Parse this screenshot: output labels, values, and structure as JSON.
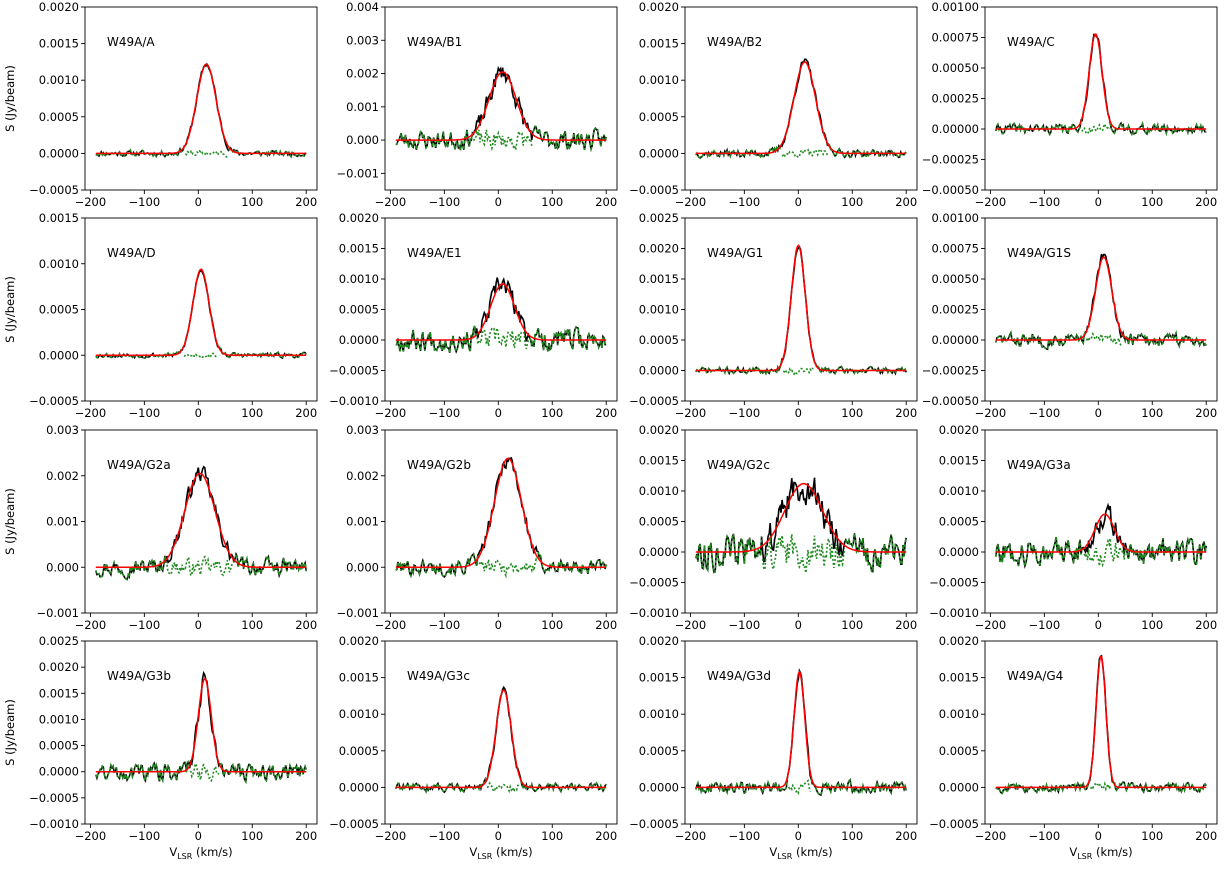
{
  "figure": {
    "ylabel": "S (Jy/beam)",
    "xlabel_main": "V",
    "xlabel_sub": "LSR",
    "xlabel_unit": " (km/s)"
  },
  "colors": {
    "observed": "#000000",
    "fit": "#ff0000",
    "residual": "#228B22"
  },
  "chart_data": [
    {
      "type": "line",
      "title": "W49A/A",
      "xlim": [
        -210,
        220
      ],
      "ylim": [
        -0.0005,
        0.002
      ],
      "xticks": [
        -200,
        -100,
        0,
        100,
        200
      ],
      "xtick_labels": [
        "−200",
        "−100",
        "0",
        "100",
        "200"
      ],
      "yticks": [
        -0.0005,
        0,
        0.0005,
        0.001,
        0.0015,
        0.002
      ],
      "ytick_labels": [
        "−0.0005",
        "0.0000",
        "0.0005",
        "0.0010",
        "0.0015",
        "0.0020"
      ],
      "fit": {
        "center": 15,
        "width": 18,
        "amplitude": 0.00122
      },
      "noise": 6e-05,
      "seed": 11
    },
    {
      "type": "line",
      "title": "W49A/B1",
      "xlim": [
        -210,
        220
      ],
      "ylim": [
        -0.0015,
        0.004
      ],
      "xticks": [
        -200,
        -100,
        0,
        100,
        200
      ],
      "xtick_labels": [
        "−200",
        "−100",
        "0",
        "100",
        "200"
      ],
      "yticks": [
        -0.001,
        0,
        0.001,
        0.002,
        0.003,
        0.004
      ],
      "ytick_labels": [
        "−0.001",
        "0.000",
        "0.001",
        "0.002",
        "0.003",
        "0.004"
      ],
      "fit": {
        "center": 8,
        "width": 25,
        "amplitude": 0.00205
      },
      "noise": 0.00045,
      "seed": 23
    },
    {
      "type": "line",
      "title": "W49A/B2",
      "xlim": [
        -210,
        220
      ],
      "ylim": [
        -0.0005,
        0.002
      ],
      "xticks": [
        -200,
        -100,
        0,
        100,
        200
      ],
      "xtick_labels": [
        "−200",
        "−100",
        "0",
        "100",
        "200"
      ],
      "yticks": [
        -0.0005,
        0,
        0.0005,
        0.001,
        0.0015,
        0.002
      ],
      "ytick_labels": [
        "−0.0005",
        "0.0000",
        "0.0005",
        "0.0010",
        "0.0015",
        "0.0020"
      ],
      "fit": {
        "center": 12,
        "width": 20,
        "amplitude": 0.00125
      },
      "noise": 8e-05,
      "seed": 37
    },
    {
      "type": "line",
      "title": "W49A/C",
      "xlim": [
        -210,
        220
      ],
      "ylim": [
        -0.0005,
        0.001
      ],
      "xticks": [
        -200,
        -100,
        0,
        100,
        200
      ],
      "xtick_labels": [
        "−200",
        "−100",
        "0",
        "100",
        "200"
      ],
      "yticks": [
        -0.0005,
        -0.00025,
        0,
        0.00025,
        0.0005,
        0.00075,
        0.001
      ],
      "ytick_labels": [
        "−0.00050",
        "−0.00025",
        "0.00000",
        "0.00025",
        "0.00050",
        "0.00075",
        "0.00100"
      ],
      "fit": {
        "center": -5,
        "width": 12,
        "amplitude": 0.00078
      },
      "noise": 6e-05,
      "seed": 41
    },
    {
      "type": "line",
      "title": "W49A/D",
      "xlim": [
        -210,
        220
      ],
      "ylim": [
        -0.0005,
        0.0015
      ],
      "xticks": [
        -200,
        -100,
        0,
        100,
        200
      ],
      "xtick_labels": [
        "−200",
        "−100",
        "0",
        "100",
        "200"
      ],
      "yticks": [
        -0.0005,
        0,
        0.0005,
        0.001,
        0.0015
      ],
      "ytick_labels": [
        "−0.0005",
        "0.0000",
        "0.0005",
        "0.0010",
        "0.0015"
      ],
      "fit": {
        "center": 5,
        "width": 15,
        "amplitude": 0.00094
      },
      "noise": 4e-05,
      "seed": 53
    },
    {
      "type": "line",
      "title": "W49A/E1",
      "xlim": [
        -210,
        220
      ],
      "ylim": [
        -0.001,
        0.002
      ],
      "xticks": [
        -200,
        -100,
        0,
        100,
        200
      ],
      "xtick_labels": [
        "−200",
        "−100",
        "0",
        "100",
        "200"
      ],
      "yticks": [
        -0.001,
        -0.0005,
        0,
        0.0005,
        0.001,
        0.0015,
        0.002
      ],
      "ytick_labels": [
        "−0.0010",
        "−0.0005",
        "0.0000",
        "0.0005",
        "0.0010",
        "0.0015",
        "0.0020"
      ],
      "fit": {
        "center": 8,
        "width": 22,
        "amplitude": 0.00092
      },
      "noise": 0.00028,
      "seed": 67
    },
    {
      "type": "line",
      "title": "W49A/G1",
      "xlim": [
        -210,
        220
      ],
      "ylim": [
        -0.0005,
        0.0025
      ],
      "xticks": [
        -200,
        -100,
        0,
        100,
        200
      ],
      "xtick_labels": [
        "−200",
        "−100",
        "0",
        "100",
        "200"
      ],
      "yticks": [
        -0.0005,
        0,
        0.0005,
        0.001,
        0.0015,
        0.002,
        0.0025
      ],
      "ytick_labels": [
        "−0.0005",
        "0.0000",
        "0.0005",
        "0.0010",
        "0.0015",
        "0.0020",
        "0.0025"
      ],
      "fit": {
        "center": 0,
        "width": 13,
        "amplitude": 0.00205
      },
      "noise": 8e-05,
      "seed": 71
    },
    {
      "type": "line",
      "title": "W49A/G1S",
      "xlim": [
        -210,
        220
      ],
      "ylim": [
        -0.0005,
        0.001
      ],
      "xticks": [
        -200,
        -100,
        0,
        100,
        200
      ],
      "xtick_labels": [
        "−200",
        "−100",
        "0",
        "100",
        "200"
      ],
      "yticks": [
        -0.0005,
        -0.00025,
        0,
        0.00025,
        0.0005,
        0.00075,
        0.001
      ],
      "ytick_labels": [
        "−0.00050",
        "−0.00025",
        "0.00000",
        "0.00025",
        "0.00050",
        "0.00075",
        "0.00100"
      ],
      "fit": {
        "center": 10,
        "width": 15,
        "amplitude": 0.00068
      },
      "noise": 8e-05,
      "seed": 83
    },
    {
      "type": "line",
      "title": "W49A/G2a",
      "xlim": [
        -210,
        220
      ],
      "ylim": [
        -0.001,
        0.003
      ],
      "xticks": [
        -200,
        -100,
        0,
        100,
        200
      ],
      "xtick_labels": [
        "−200",
        "−100",
        "0",
        "100",
        "200"
      ],
      "yticks": [
        -0.001,
        0,
        0.001,
        0.002,
        0.003
      ],
      "ytick_labels": [
        "−0.001",
        "0.000",
        "0.001",
        "0.002",
        "0.003"
      ],
      "fit": {
        "center": 3,
        "width": 28,
        "amplitude": 0.00205
      },
      "noise": 0.00028,
      "seed": 97
    },
    {
      "type": "line",
      "title": "W49A/G2b",
      "xlim": [
        -210,
        220
      ],
      "ylim": [
        -0.001,
        0.003
      ],
      "xticks": [
        -200,
        -100,
        0,
        100,
        200
      ],
      "xtick_labels": [
        "−200",
        "−100",
        "0",
        "100",
        "200"
      ],
      "yticks": [
        -0.001,
        0,
        0.001,
        0.002,
        0.003
      ],
      "ytick_labels": [
        "−0.001",
        "0.000",
        "0.001",
        "0.002",
        "0.003"
      ],
      "fit": {
        "center": 18,
        "width": 25,
        "amplitude": 0.00238
      },
      "noise": 0.00026,
      "seed": 101
    },
    {
      "type": "line",
      "title": "W49A/G2c",
      "xlim": [
        -210,
        220
      ],
      "ylim": [
        -0.001,
        0.002
      ],
      "xticks": [
        -200,
        -100,
        0,
        100,
        200
      ],
      "xtick_labels": [
        "−200",
        "−100",
        "0",
        "100",
        "200"
      ],
      "yticks": [
        -0.001,
        -0.0005,
        0,
        0.0005,
        0.001,
        0.0015,
        0.002
      ],
      "ytick_labels": [
        "−0.0010",
        "−0.0005",
        "0.0000",
        "0.0005",
        "0.0010",
        "0.0015",
        "0.0020"
      ],
      "fit": {
        "center": 10,
        "width": 35,
        "amplitude": 0.00112
      },
      "noise": 0.00042,
      "seed": 113
    },
    {
      "type": "line",
      "title": "W49A/G3a",
      "xlim": [
        -210,
        220
      ],
      "ylim": [
        -0.001,
        0.002
      ],
      "xticks": [
        -200,
        -100,
        0,
        100,
        200
      ],
      "xtick_labels": [
        "−200",
        "−100",
        "0",
        "100",
        "200"
      ],
      "yticks": [
        -0.001,
        -0.0005,
        0,
        0.0005,
        0.001,
        0.0015,
        0.002
      ],
      "ytick_labels": [
        "−0.0010",
        "−0.0005",
        "0.0000",
        "0.0005",
        "0.0010",
        "0.0015",
        "0.0020"
      ],
      "fit": {
        "center": 12,
        "width": 18,
        "amplitude": 0.00062
      },
      "noise": 0.00032,
      "seed": 127
    },
    {
      "type": "line",
      "title": "W49A/G3b",
      "xlim": [
        -210,
        220
      ],
      "ylim": [
        -0.001,
        0.0025
      ],
      "xticks": [
        -200,
        -100,
        0,
        100,
        200
      ],
      "xtick_labels": [
        "−200",
        "−100",
        "0",
        "100",
        "200"
      ],
      "yticks": [
        -0.001,
        -0.0005,
        0,
        0.0005,
        0.001,
        0.0015,
        0.002,
        0.0025
      ],
      "ytick_labels": [
        "−0.0010",
        "−0.0005",
        "0.0000",
        "0.0005",
        "0.0010",
        "0.0015",
        "0.0020",
        "0.0025"
      ],
      "fit": {
        "center": 12,
        "width": 12,
        "amplitude": 0.00178
      },
      "noise": 0.00025,
      "seed": 131
    },
    {
      "type": "line",
      "title": "W49A/G3c",
      "xlim": [
        -210,
        220
      ],
      "ylim": [
        -0.0005,
        0.002
      ],
      "xticks": [
        -200,
        -100,
        0,
        100,
        200
      ],
      "xtick_labels": [
        "−200",
        "−100",
        "0",
        "100",
        "200"
      ],
      "yticks": [
        -0.0005,
        0,
        0.0005,
        0.001,
        0.0015,
        0.002
      ],
      "ytick_labels": [
        "−0.0005",
        "0.0000",
        "0.0005",
        "0.0010",
        "0.0015",
        "0.0020"
      ],
      "fit": {
        "center": 10,
        "width": 14,
        "amplitude": 0.00133
      },
      "noise": 8e-05,
      "seed": 139
    },
    {
      "type": "line",
      "title": "W49A/G3d",
      "xlim": [
        -210,
        220
      ],
      "ylim": [
        -0.0005,
        0.002
      ],
      "xticks": [
        -200,
        -100,
        0,
        100,
        200
      ],
      "xtick_labels": [
        "−200",
        "−100",
        "0",
        "100",
        "200"
      ],
      "yticks": [
        -0.0005,
        0,
        0.0005,
        0.001,
        0.0015,
        0.002
      ],
      "ytick_labels": [
        "−0.0005",
        "0.0000",
        "0.0005",
        "0.0010",
        "0.0015",
        "0.0020"
      ],
      "fit": {
        "center": 2,
        "width": 10,
        "amplitude": 0.00158
      },
      "noise": 0.00012,
      "seed": 149
    },
    {
      "type": "line",
      "title": "W49A/G4",
      "xlim": [
        -210,
        220
      ],
      "ylim": [
        -0.0005,
        0.002
      ],
      "xticks": [
        -200,
        -100,
        0,
        100,
        200
      ],
      "xtick_labels": [
        "−200",
        "−100",
        "0",
        "100",
        "200"
      ],
      "yticks": [
        -0.0005,
        0,
        0.0005,
        0.001,
        0.0015,
        0.002
      ],
      "ytick_labels": [
        "−0.0005",
        "0.0000",
        "0.0005",
        "0.0010",
        "0.0015",
        "0.0020"
      ],
      "fit": {
        "center": 5,
        "width": 9,
        "amplitude": 0.0018
      },
      "noise": 9e-05,
      "seed": 157
    }
  ]
}
